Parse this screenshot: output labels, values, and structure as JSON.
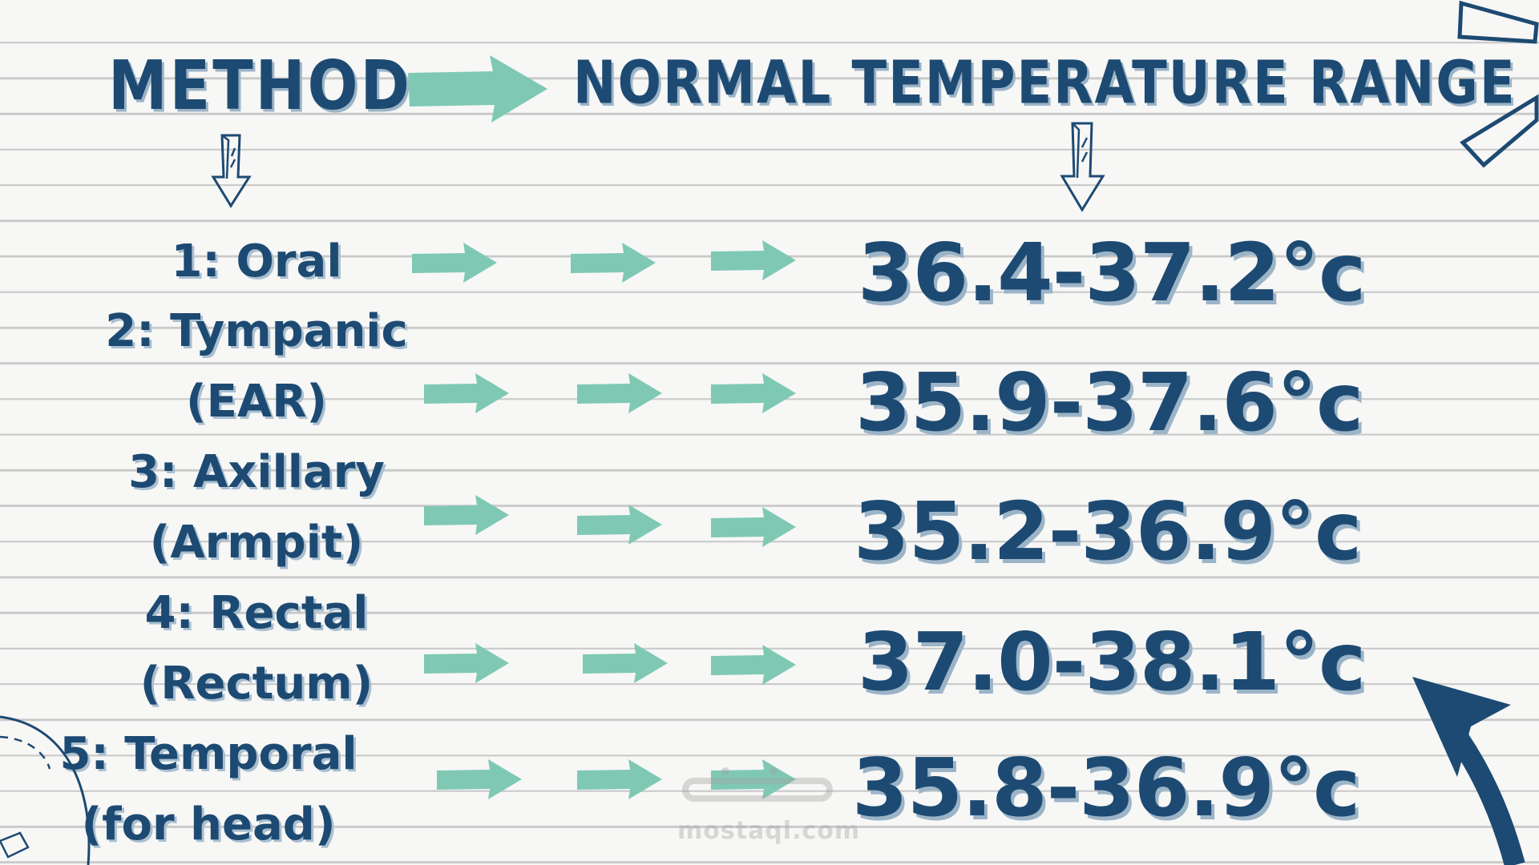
{
  "header": {
    "method_label": "METHOD",
    "range_label": "NORMAL TEMPERATURE RANGE"
  },
  "rows": [
    {
      "method_lines": [
        "1: Oral"
      ],
      "range": "36.4-37.2°c"
    },
    {
      "method_lines": [
        "2: Tympanic",
        "(EAR)"
      ],
      "range": "35.9-37.6°c"
    },
    {
      "method_lines": [
        "3: Axillary",
        "(Armpit)"
      ],
      "range": "35.2-36.9°c"
    },
    {
      "method_lines": [
        "4: Rectal",
        "(Rectum)"
      ],
      "range": "37.0-38.1°c"
    },
    {
      "method_lines": [
        "5: Temporal",
        "(for head)"
      ],
      "range": "35.8-36.9°c"
    }
  ],
  "watermark": {
    "text": "mostaql.com"
  },
  "colors": {
    "text": "#1d4a72",
    "shadow": "#9cb4c7",
    "arrow": "#7fc9b4",
    "line": "#c9c9c9"
  }
}
